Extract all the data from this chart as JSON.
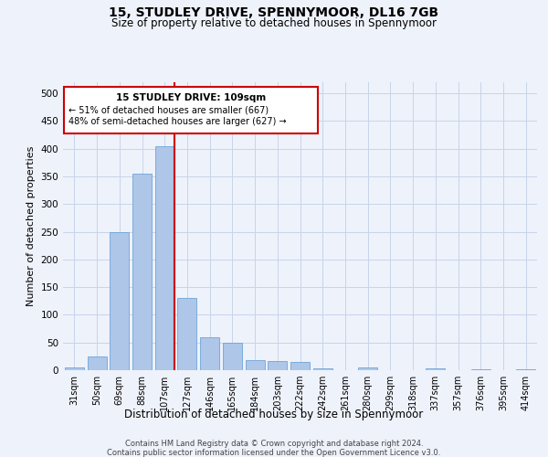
{
  "title": "15, STUDLEY DRIVE, SPENNYMOOR, DL16 7GB",
  "subtitle": "Size of property relative to detached houses in Spennymoor",
  "xlabel": "Distribution of detached houses by size in Spennymoor",
  "ylabel": "Number of detached properties",
  "footer1": "Contains HM Land Registry data © Crown copyright and database right 2024.",
  "footer2": "Contains public sector information licensed under the Open Government Licence v3.0.",
  "annotation_line1": "15 STUDLEY DRIVE: 109sqm",
  "annotation_line2": "← 51% of detached houses are smaller (667)",
  "annotation_line3": "48% of semi-detached houses are larger (627) →",
  "bar_labels": [
    "31sqm",
    "50sqm",
    "69sqm",
    "88sqm",
    "107sqm",
    "127sqm",
    "146sqm",
    "165sqm",
    "184sqm",
    "203sqm",
    "222sqm",
    "242sqm",
    "261sqm",
    "280sqm",
    "299sqm",
    "318sqm",
    "337sqm",
    "357sqm",
    "376sqm",
    "395sqm",
    "414sqm"
  ],
  "bar_values": [
    5,
    25,
    250,
    355,
    405,
    130,
    60,
    50,
    18,
    17,
    15,
    3,
    0,
    5,
    0,
    0,
    3,
    0,
    1,
    0,
    1
  ],
  "bar_color": "#aec6e8",
  "bar_edge_color": "#5b9bd5",
  "vline_x_index": 4,
  "vline_color": "#cc0000",
  "annotation_box_color": "#cc0000",
  "background_color": "#eef2fb",
  "grid_color": "#c8d4ea",
  "ylim": [
    0,
    520
  ],
  "yticks": [
    0,
    50,
    100,
    150,
    200,
    250,
    300,
    350,
    400,
    450,
    500
  ]
}
